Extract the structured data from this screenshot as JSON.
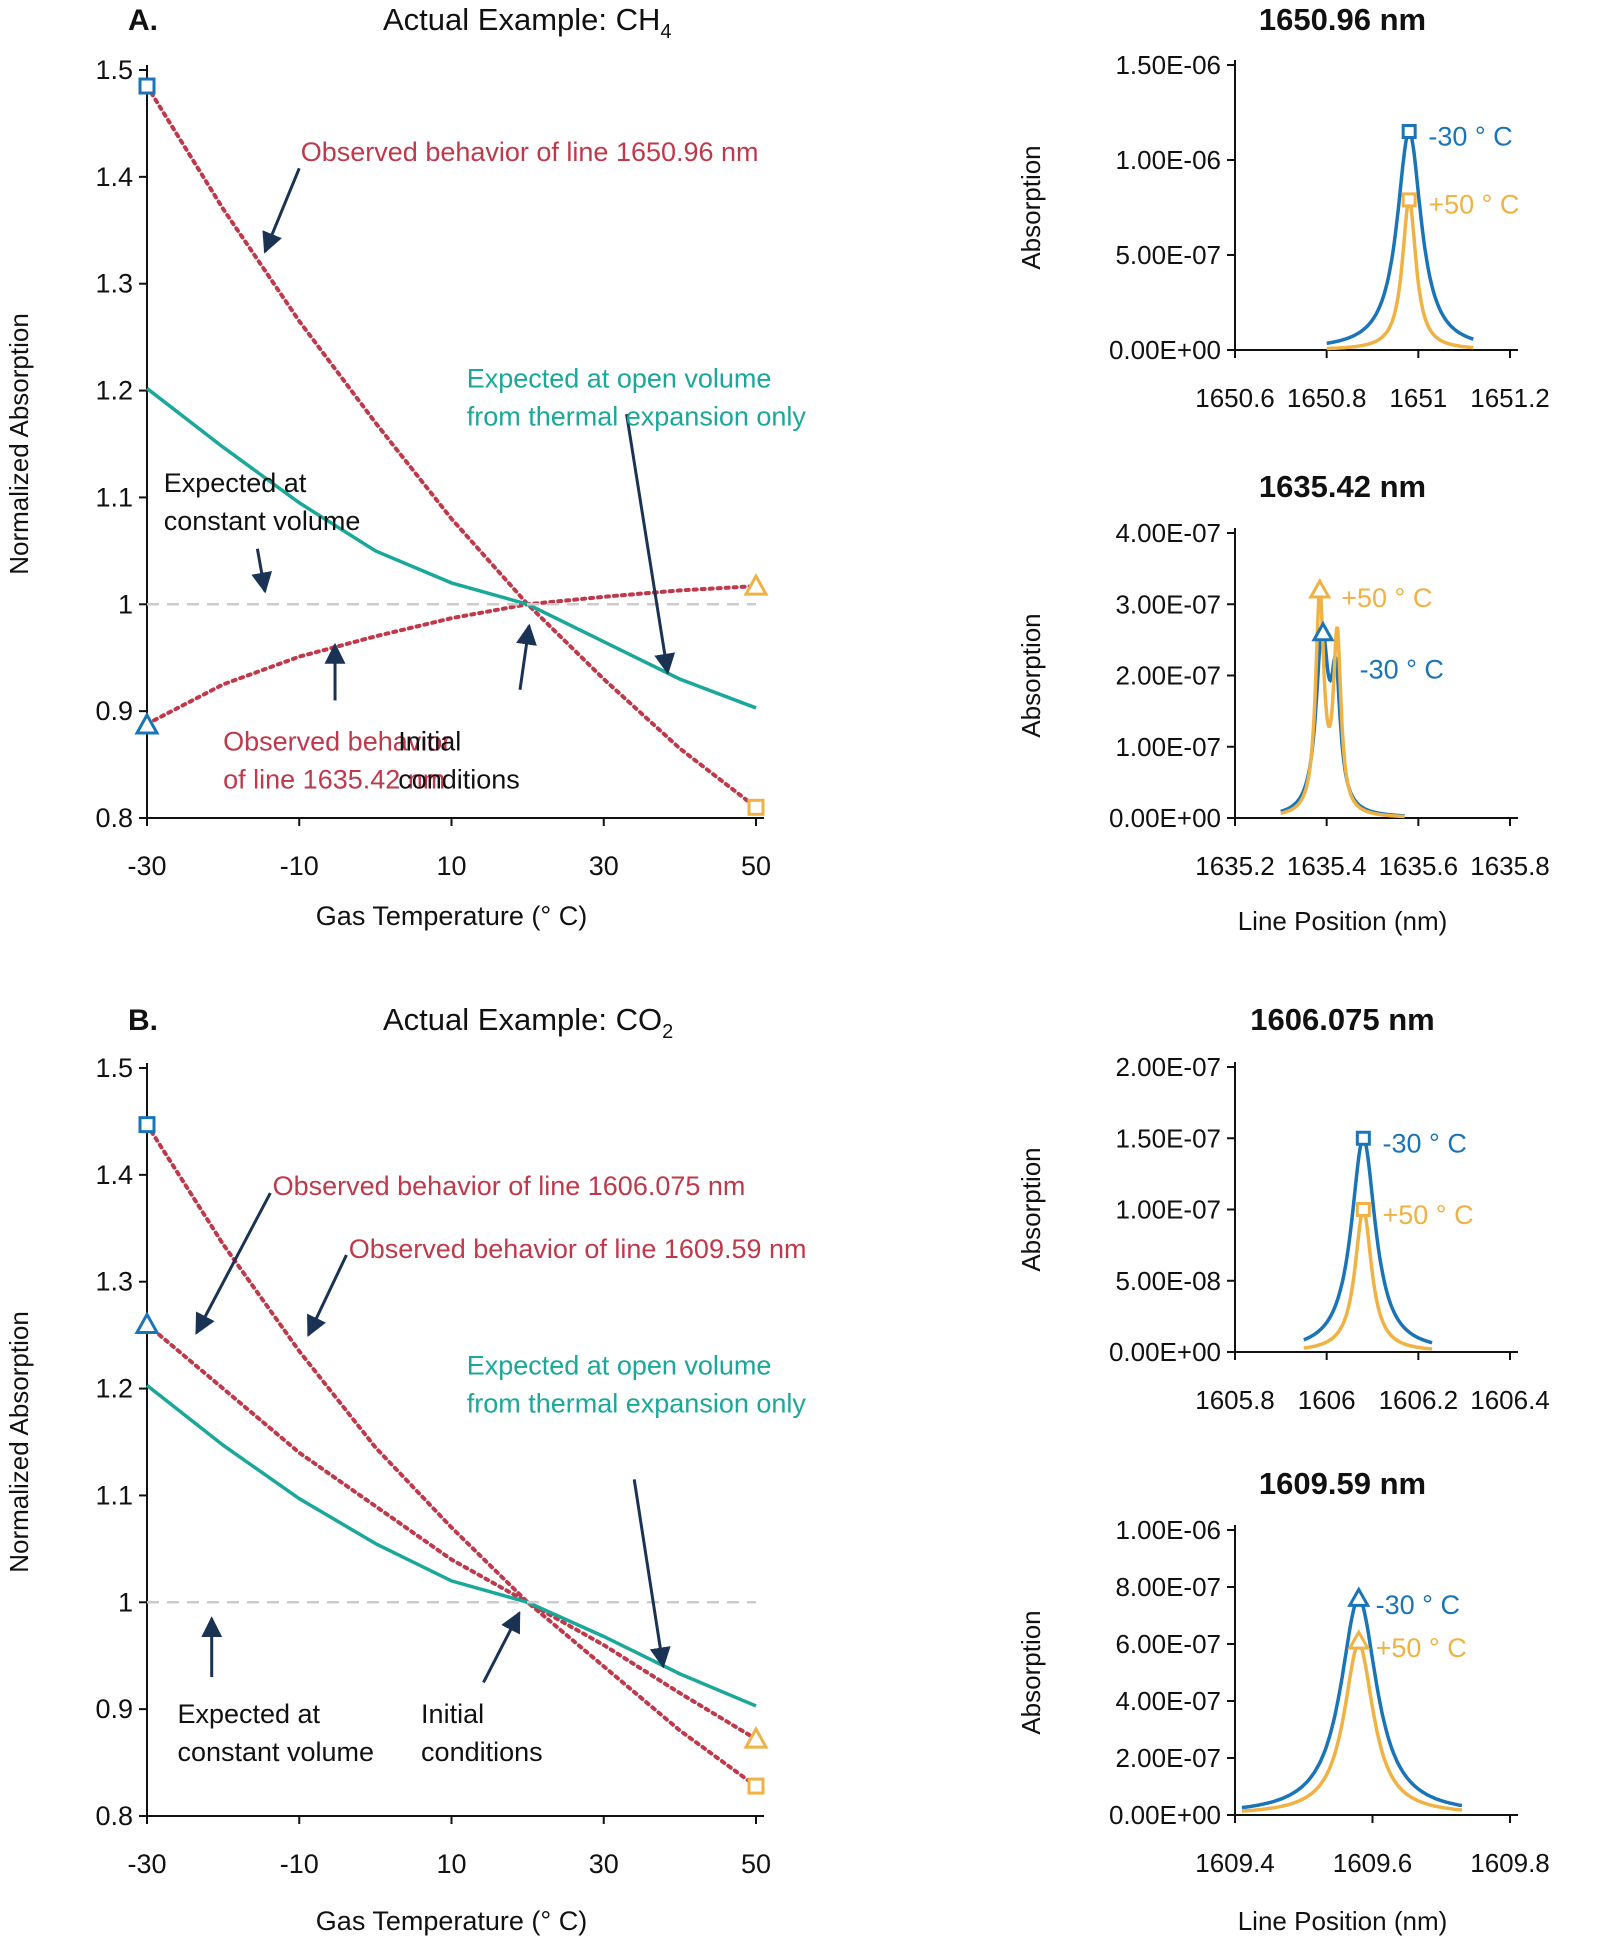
{
  "colors": {
    "red": "#c0394b",
    "teal": "#1aa89a",
    "blue": "#1a74b8",
    "orange": "#f0b244",
    "navy": "#1a3355",
    "grid": "#cccccc",
    "axis": "#111111"
  },
  "chart_data": [
    {
      "panel": "A",
      "type": "line",
      "panel_letter": "A.",
      "title_prefix": "Actual Example: CH",
      "title_sub": "4",
      "xlabel": "Gas Temperature (° C)",
      "ylabel": "Normalized Absorption",
      "xlim": [
        -30,
        50
      ],
      "ylim": [
        0.8,
        1.5
      ],
      "xticks": [
        -30,
        -10,
        10,
        30,
        50
      ],
      "xtick_labels": [
        "-30",
        "-10",
        "10",
        "30",
        "50"
      ],
      "yticks": [
        0.8,
        0.9,
        1.0,
        1.1,
        1.2,
        1.3,
        1.4,
        1.5
      ],
      "ytick_labels": [
        "0.8",
        "0.9",
        "1",
        "1.1",
        "1.2",
        "1.3",
        "1.4",
        "1.5"
      ],
      "series": [
        {
          "key": "line_1650",
          "style": "dotted",
          "color": "red",
          "x": [
            -30,
            -20,
            -10,
            0,
            10,
            20,
            30,
            40,
            50
          ],
          "y": [
            1.485,
            1.37,
            1.265,
            1.17,
            1.08,
            1.0,
            0.93,
            0.865,
            0.81
          ]
        },
        {
          "key": "line_1635",
          "style": "dotted",
          "color": "red",
          "x": [
            -30,
            -20,
            -10,
            0,
            10,
            20,
            30,
            40,
            50
          ],
          "y": [
            0.888,
            0.925,
            0.951,
            0.97,
            0.987,
            1.0,
            1.007,
            1.013,
            1.017
          ]
        },
        {
          "key": "open_volume",
          "style": "solid",
          "color": "teal",
          "x": [
            -30,
            -20,
            -10,
            0,
            10,
            20,
            30,
            40,
            50
          ],
          "y": [
            1.202,
            1.147,
            1.095,
            1.05,
            1.02,
            1.0,
            0.965,
            0.93,
            0.903
          ]
        },
        {
          "key": "constant_volume",
          "style": "dashed",
          "color": "grid",
          "x": [
            -30,
            50
          ],
          "y": [
            1.0,
            1.0
          ]
        }
      ],
      "markers": [
        {
          "shape": "square",
          "color": "blue",
          "x": -30,
          "y": 1.485
        },
        {
          "shape": "triangle",
          "color": "blue",
          "x": -30,
          "y": 0.887
        },
        {
          "shape": "triangle",
          "color": "orange",
          "x": 50,
          "y": 1.017
        },
        {
          "shape": "square",
          "color": "orange",
          "x": 50,
          "y": 0.81
        }
      ],
      "annotations": [
        {
          "lines": [
            "Observed behavior of line 1650.96 nm"
          ],
          "color": "red",
          "at": [
            -9.8,
            1.415
          ],
          "anchor": "start"
        },
        {
          "lines": [
            "Expected at open volume",
            "from thermal expansion only"
          ],
          "color": "teal",
          "at": [
            12,
            1.203
          ],
          "anchor": "start"
        },
        {
          "lines": [
            "Expected at",
            "constant volume"
          ],
          "color": "axis",
          "at": [
            -27.8,
            1.105
          ],
          "anchor": "start"
        },
        {
          "lines": [
            "Observed behavior",
            "of line 1635.42 nm"
          ],
          "color": "red",
          "at": [
            -20,
            0.863
          ],
          "anchor": "start"
        },
        {
          "lines": [
            "Initial",
            "conditions"
          ],
          "color": "axis",
          "at": [
            3,
            0.863
          ],
          "anchor": "start"
        }
      ],
      "arrows": [
        {
          "from": [
            -10,
            1.408
          ],
          "to": [
            -14.5,
            1.33
          ]
        },
        {
          "from": [
            -15.5,
            1.052
          ],
          "to": [
            -14.5,
            1.012
          ]
        },
        {
          "from": [
            -5.3,
            0.91
          ],
          "to": [
            -5.3,
            0.962
          ]
        },
        {
          "from": [
            19,
            0.92
          ],
          "to": [
            20.2,
            0.98
          ]
        },
        {
          "from": [
            33,
            1.178
          ],
          "to": [
            38.4,
            0.936
          ]
        }
      ]
    },
    {
      "panel": "B",
      "type": "line",
      "panel_letter": "B.",
      "title_prefix": "Actual Example: CO",
      "title_sub": "2",
      "xlabel": "Gas Temperature (° C)",
      "ylabel": "Normalized Absorption",
      "xlim": [
        -30,
        50
      ],
      "ylim": [
        0.8,
        1.5
      ],
      "xticks": [
        -30,
        -10,
        10,
        30,
        50
      ],
      "xtick_labels": [
        "-30",
        "-10",
        "10",
        "30",
        "50"
      ],
      "yticks": [
        0.8,
        0.9,
        1.0,
        1.1,
        1.2,
        1.3,
        1.4,
        1.5
      ],
      "ytick_labels": [
        "0.8",
        "0.9",
        "1",
        "1.1",
        "1.2",
        "1.3",
        "1.4",
        "1.5"
      ],
      "series": [
        {
          "key": "line_1606",
          "style": "dotted",
          "color": "red",
          "x": [
            -30,
            -20,
            -10,
            0,
            10,
            20,
            30,
            40,
            50
          ],
          "y": [
            1.447,
            1.335,
            1.235,
            1.145,
            1.07,
            1.0,
            0.94,
            0.88,
            0.828
          ]
        },
        {
          "key": "line_1609",
          "style": "dotted",
          "color": "red",
          "x": [
            -30,
            -20,
            -10,
            0,
            10,
            20,
            30,
            40,
            50
          ],
          "y": [
            1.26,
            1.2,
            1.14,
            1.09,
            1.04,
            1.0,
            0.96,
            0.915,
            0.872
          ]
        },
        {
          "key": "open_volume",
          "style": "solid",
          "color": "teal",
          "x": [
            -30,
            -20,
            -10,
            0,
            10,
            20,
            30,
            40,
            50
          ],
          "y": [
            1.203,
            1.147,
            1.097,
            1.055,
            1.02,
            1.0,
            0.968,
            0.933,
            0.903
          ]
        },
        {
          "key": "constant_volume",
          "style": "dashed",
          "color": "grid",
          "x": [
            -30,
            50
          ],
          "y": [
            1.0,
            1.0
          ]
        }
      ],
      "markers": [
        {
          "shape": "square",
          "color": "blue",
          "x": -30,
          "y": 1.447
        },
        {
          "shape": "triangle",
          "color": "blue",
          "x": -30,
          "y": 1.26
        },
        {
          "shape": "triangle",
          "color": "orange",
          "x": 50,
          "y": 0.872
        },
        {
          "shape": "square",
          "color": "orange",
          "x": 50,
          "y": 0.828
        }
      ],
      "annotations": [
        {
          "lines": [
            "Observed behavior of line 1606.075 nm"
          ],
          "color": "red",
          "at": [
            -13.5,
            1.381
          ],
          "anchor": "start"
        },
        {
          "lines": [
            "Observed behavior of line 1609.59 nm"
          ],
          "color": "red",
          "at": [
            -3.5,
            1.322
          ],
          "anchor": "start"
        },
        {
          "lines": [
            "Expected at open volume",
            "from thermal expansion only"
          ],
          "color": "teal",
          "at": [
            12,
            1.213
          ],
          "anchor": "start"
        },
        {
          "lines": [
            "Expected at",
            "constant volume"
          ],
          "color": "axis",
          "at": [
            -26,
            0.887
          ],
          "anchor": "start"
        },
        {
          "lines": [
            "Initial",
            "conditions"
          ],
          "color": "axis",
          "at": [
            6,
            0.887
          ],
          "anchor": "start"
        }
      ],
      "arrows": [
        {
          "from": [
            -13.8,
            1.383
          ],
          "to": [
            -23.5,
            1.252
          ]
        },
        {
          "from": [
            -3.8,
            1.325
          ],
          "to": [
            -8.8,
            1.25
          ]
        },
        {
          "from": [
            -21.5,
            0.93
          ],
          "to": [
            -21.5,
            0.985
          ]
        },
        {
          "from": [
            14.2,
            0.925
          ],
          "to": [
            18.9,
            0.99
          ]
        },
        {
          "from": [
            34,
            1.115
          ],
          "to": [
            37.8,
            0.94
          ]
        }
      ]
    },
    {
      "panel": "A1",
      "type": "line",
      "title": "1650.96 nm",
      "xlabel": "",
      "ylabel": "Absorption",
      "xlim": [
        1650.6,
        1651.2
      ],
      "ylim": [
        0,
        1.5e-06
      ],
      "xticks": [
        1650.6,
        1650.8,
        1651,
        1651.2
      ],
      "xtick_labels": [
        "1650.6",
        "1650.8",
        "1651",
        "1651.2"
      ],
      "yticks": [
        0,
        5e-07,
        1e-06,
        1.5e-06
      ],
      "ytick_labels": [
        "0.00E+00",
        "5.00E-07",
        "1.00E-06",
        "1.50E-06"
      ],
      "peak": {
        "center": 1650.98,
        "x_range": [
          1650.8,
          1651.12
        ]
      },
      "series": [
        {
          "name": "-30 ° C",
          "color": "blue",
          "profile": [
            [
              1650.98,
              1.15e-06,
              0.032
            ]
          ]
        },
        {
          "name": "+50 ° C",
          "color": "orange",
          "profile": [
            [
              1650.98,
              7.9e-07,
              0.018
            ]
          ]
        }
      ],
      "markers": [
        {
          "shape": "square",
          "color": "blue",
          "x": 1650.98,
          "y": 1.15e-06
        },
        {
          "shape": "square",
          "color": "orange",
          "x": 1650.98,
          "y": 7.9e-07
        }
      ],
      "labels": [
        {
          "text": "-30 ° C",
          "color": "blue",
          "at": [
            1651.0,
            1.13e-06
          ]
        },
        {
          "text": "+50 ° C",
          "color": "orange",
          "at": [
            1651.0,
            7.7e-07
          ]
        }
      ]
    },
    {
      "panel": "A2",
      "type": "line",
      "title": "1635.42 nm",
      "xlabel": "Line Position (nm)",
      "ylabel": "Absorption",
      "xlim": [
        1635.2,
        1635.8
      ],
      "ylim": [
        0,
        4e-07
      ],
      "xticks": [
        1635.2,
        1635.4,
        1635.6,
        1635.8
      ],
      "xtick_labels": [
        "1635.2",
        "1635.4",
        "1635.6",
        "1635.8"
      ],
      "yticks": [
        0,
        1e-07,
        2e-07,
        3e-07,
        4e-07
      ],
      "ytick_labels": [
        "0.00E+00",
        "1.00E-07",
        "2.00E-07",
        "3.00E-07",
        "4.00E-07"
      ],
      "peak": {
        "x_range": [
          1635.3,
          1635.57
        ]
      },
      "series": [
        {
          "name": "-30 ° C",
          "color": "blue",
          "profile": [
            [
              1635.39,
              2.45e-07,
              0.016
            ],
            [
              1635.42,
              1.7e-07,
              0.012
            ]
          ]
        },
        {
          "name": "+50 ° C",
          "color": "orange",
          "profile": [
            [
              1635.385,
              3.05e-07,
              0.011
            ],
            [
              1635.423,
              2.45e-07,
              0.01
            ]
          ]
        }
      ],
      "markers": [
        {
          "shape": "triangle",
          "color": "orange",
          "x": 1635.385,
          "y": 3.2e-07
        },
        {
          "shape": "triangle",
          "color": "blue",
          "x": 1635.392,
          "y": 2.6e-07
        }
      ],
      "labels": [
        {
          "text": "+50 ° C",
          "color": "orange",
          "at": [
            1635.41,
            3.1e-07
          ]
        },
        {
          "text": "-30 ° C",
          "color": "blue",
          "at": [
            1635.45,
            2.1e-07
          ]
        }
      ]
    },
    {
      "panel": "B1",
      "type": "line",
      "title": "1606.075 nm",
      "xlabel": "",
      "ylabel": "Absorption",
      "xlim": [
        1605.8,
        1606.4
      ],
      "ylim": [
        0,
        2e-07
      ],
      "xticks": [
        1605.8,
        1606.0,
        1606.2,
        1606.4
      ],
      "xtick_labels": [
        "1605.8",
        "1606",
        "1606.2",
        "1606.4"
      ],
      "yticks": [
        0,
        5e-08,
        1e-07,
        1.5e-07,
        2e-07
      ],
      "ytick_labels": [
        "0.00E+00",
        "5.00E-08",
        "1.00E-07",
        "1.50E-07",
        "2.00E-07"
      ],
      "peak": {
        "x_range": [
          1605.95,
          1606.23
        ]
      },
      "series": [
        {
          "name": "-30 ° C",
          "color": "blue",
          "profile": [
            [
              1606.08,
              1.5e-07,
              0.032
            ]
          ]
        },
        {
          "name": "+50 ° C",
          "color": "orange",
          "profile": [
            [
              1606.08,
              1e-07,
              0.022
            ]
          ]
        }
      ],
      "markers": [
        {
          "shape": "square",
          "color": "blue",
          "x": 1606.08,
          "y": 1.5e-07
        },
        {
          "shape": "square",
          "color": "orange",
          "x": 1606.08,
          "y": 1e-07
        }
      ],
      "labels": [
        {
          "text": "-30 ° C",
          "color": "blue",
          "at": [
            1606.1,
            1.47e-07
          ]
        },
        {
          "text": "+50 ° C",
          "color": "orange",
          "at": [
            1606.1,
            9.7e-08
          ]
        }
      ]
    },
    {
      "panel": "B2",
      "type": "line",
      "title": "1609.59 nm",
      "xlabel": "Line Position (nm)",
      "ylabel": "Absorption",
      "xlim": [
        1609.4,
        1609.8
      ],
      "ylim": [
        0,
        1e-06
      ],
      "xticks": [
        1609.4,
        1609.6,
        1609.8
      ],
      "xtick_labels": [
        "1609.4",
        "1609.6",
        "1609.8"
      ],
      "yticks": [
        0,
        2e-07,
        4e-07,
        6e-07,
        8e-07,
        1e-06
      ],
      "ytick_labels": [
        "0.00E+00",
        "2.00E-07",
        "4.00E-07",
        "6.00E-07",
        "8.00E-07",
        "1.00E-06"
      ],
      "peak": {
        "x_range": [
          1609.41,
          1609.73
        ]
      },
      "series": [
        {
          "name": "-30 ° C",
          "color": "blue",
          "profile": [
            [
              1609.58,
              7.6e-07,
              0.032
            ]
          ]
        },
        {
          "name": "+50 ° C",
          "color": "orange",
          "profile": [
            [
              1609.58,
              6e-07,
              0.026
            ]
          ]
        }
      ],
      "markers": [
        {
          "shape": "triangle",
          "color": "blue",
          "x": 1609.58,
          "y": 7.6e-07
        },
        {
          "shape": "triangle",
          "color": "orange",
          "x": 1609.58,
          "y": 6.1e-07
        }
      ],
      "labels": [
        {
          "text": "-30 ° C",
          "color": "blue",
          "at": [
            1609.59,
            7.4e-07
          ]
        },
        {
          "text": "+50 ° C",
          "color": "orange",
          "at": [
            1609.59,
            5.9e-07
          ]
        }
      ]
    }
  ]
}
